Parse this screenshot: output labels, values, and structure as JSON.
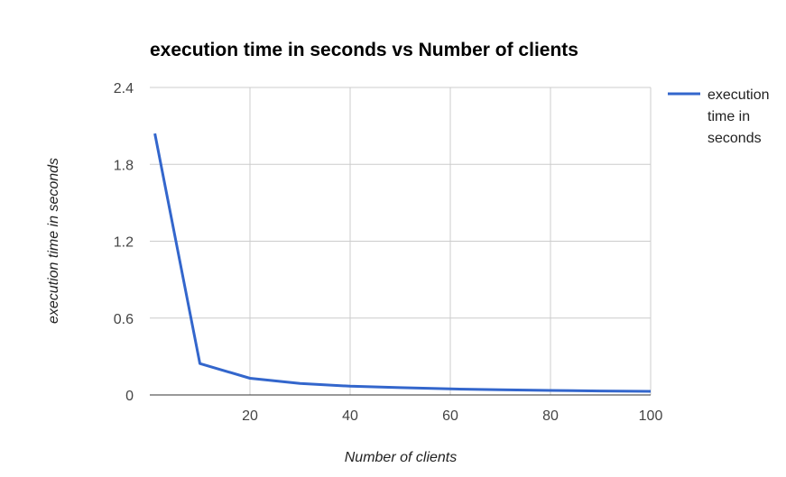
{
  "chart_data": {
    "type": "line",
    "title": "execution time in seconds vs Number of clients",
    "xlabel": "Number of clients",
    "ylabel": "execution time in seconds",
    "x": [
      1,
      10,
      20,
      30,
      40,
      50,
      60,
      70,
      80,
      90,
      100
    ],
    "series": [
      {
        "name": "execution time in seconds",
        "values": [
          2.04,
          0.245,
          0.13,
          0.09,
          0.068,
          0.057,
          0.047,
          0.04,
          0.035,
          0.031,
          0.028
        ]
      }
    ],
    "xlim": [
      0,
      100
    ],
    "ylim": [
      0,
      2.4
    ],
    "x_ticks": [
      20,
      40,
      60,
      80,
      100
    ],
    "y_ticks": [
      0,
      0.6,
      1.2,
      1.8,
      2.4
    ],
    "y_tick_labels": [
      "0",
      "0.6",
      "1.2",
      "1.8",
      "2.4"
    ],
    "grid": true,
    "legend_position": "right",
    "legend_lines": [
      "execution",
      "time in",
      "seconds"
    ],
    "colors": {
      "series": "#3366cc",
      "grid": "#cccccc",
      "axis": "#333333"
    }
  }
}
